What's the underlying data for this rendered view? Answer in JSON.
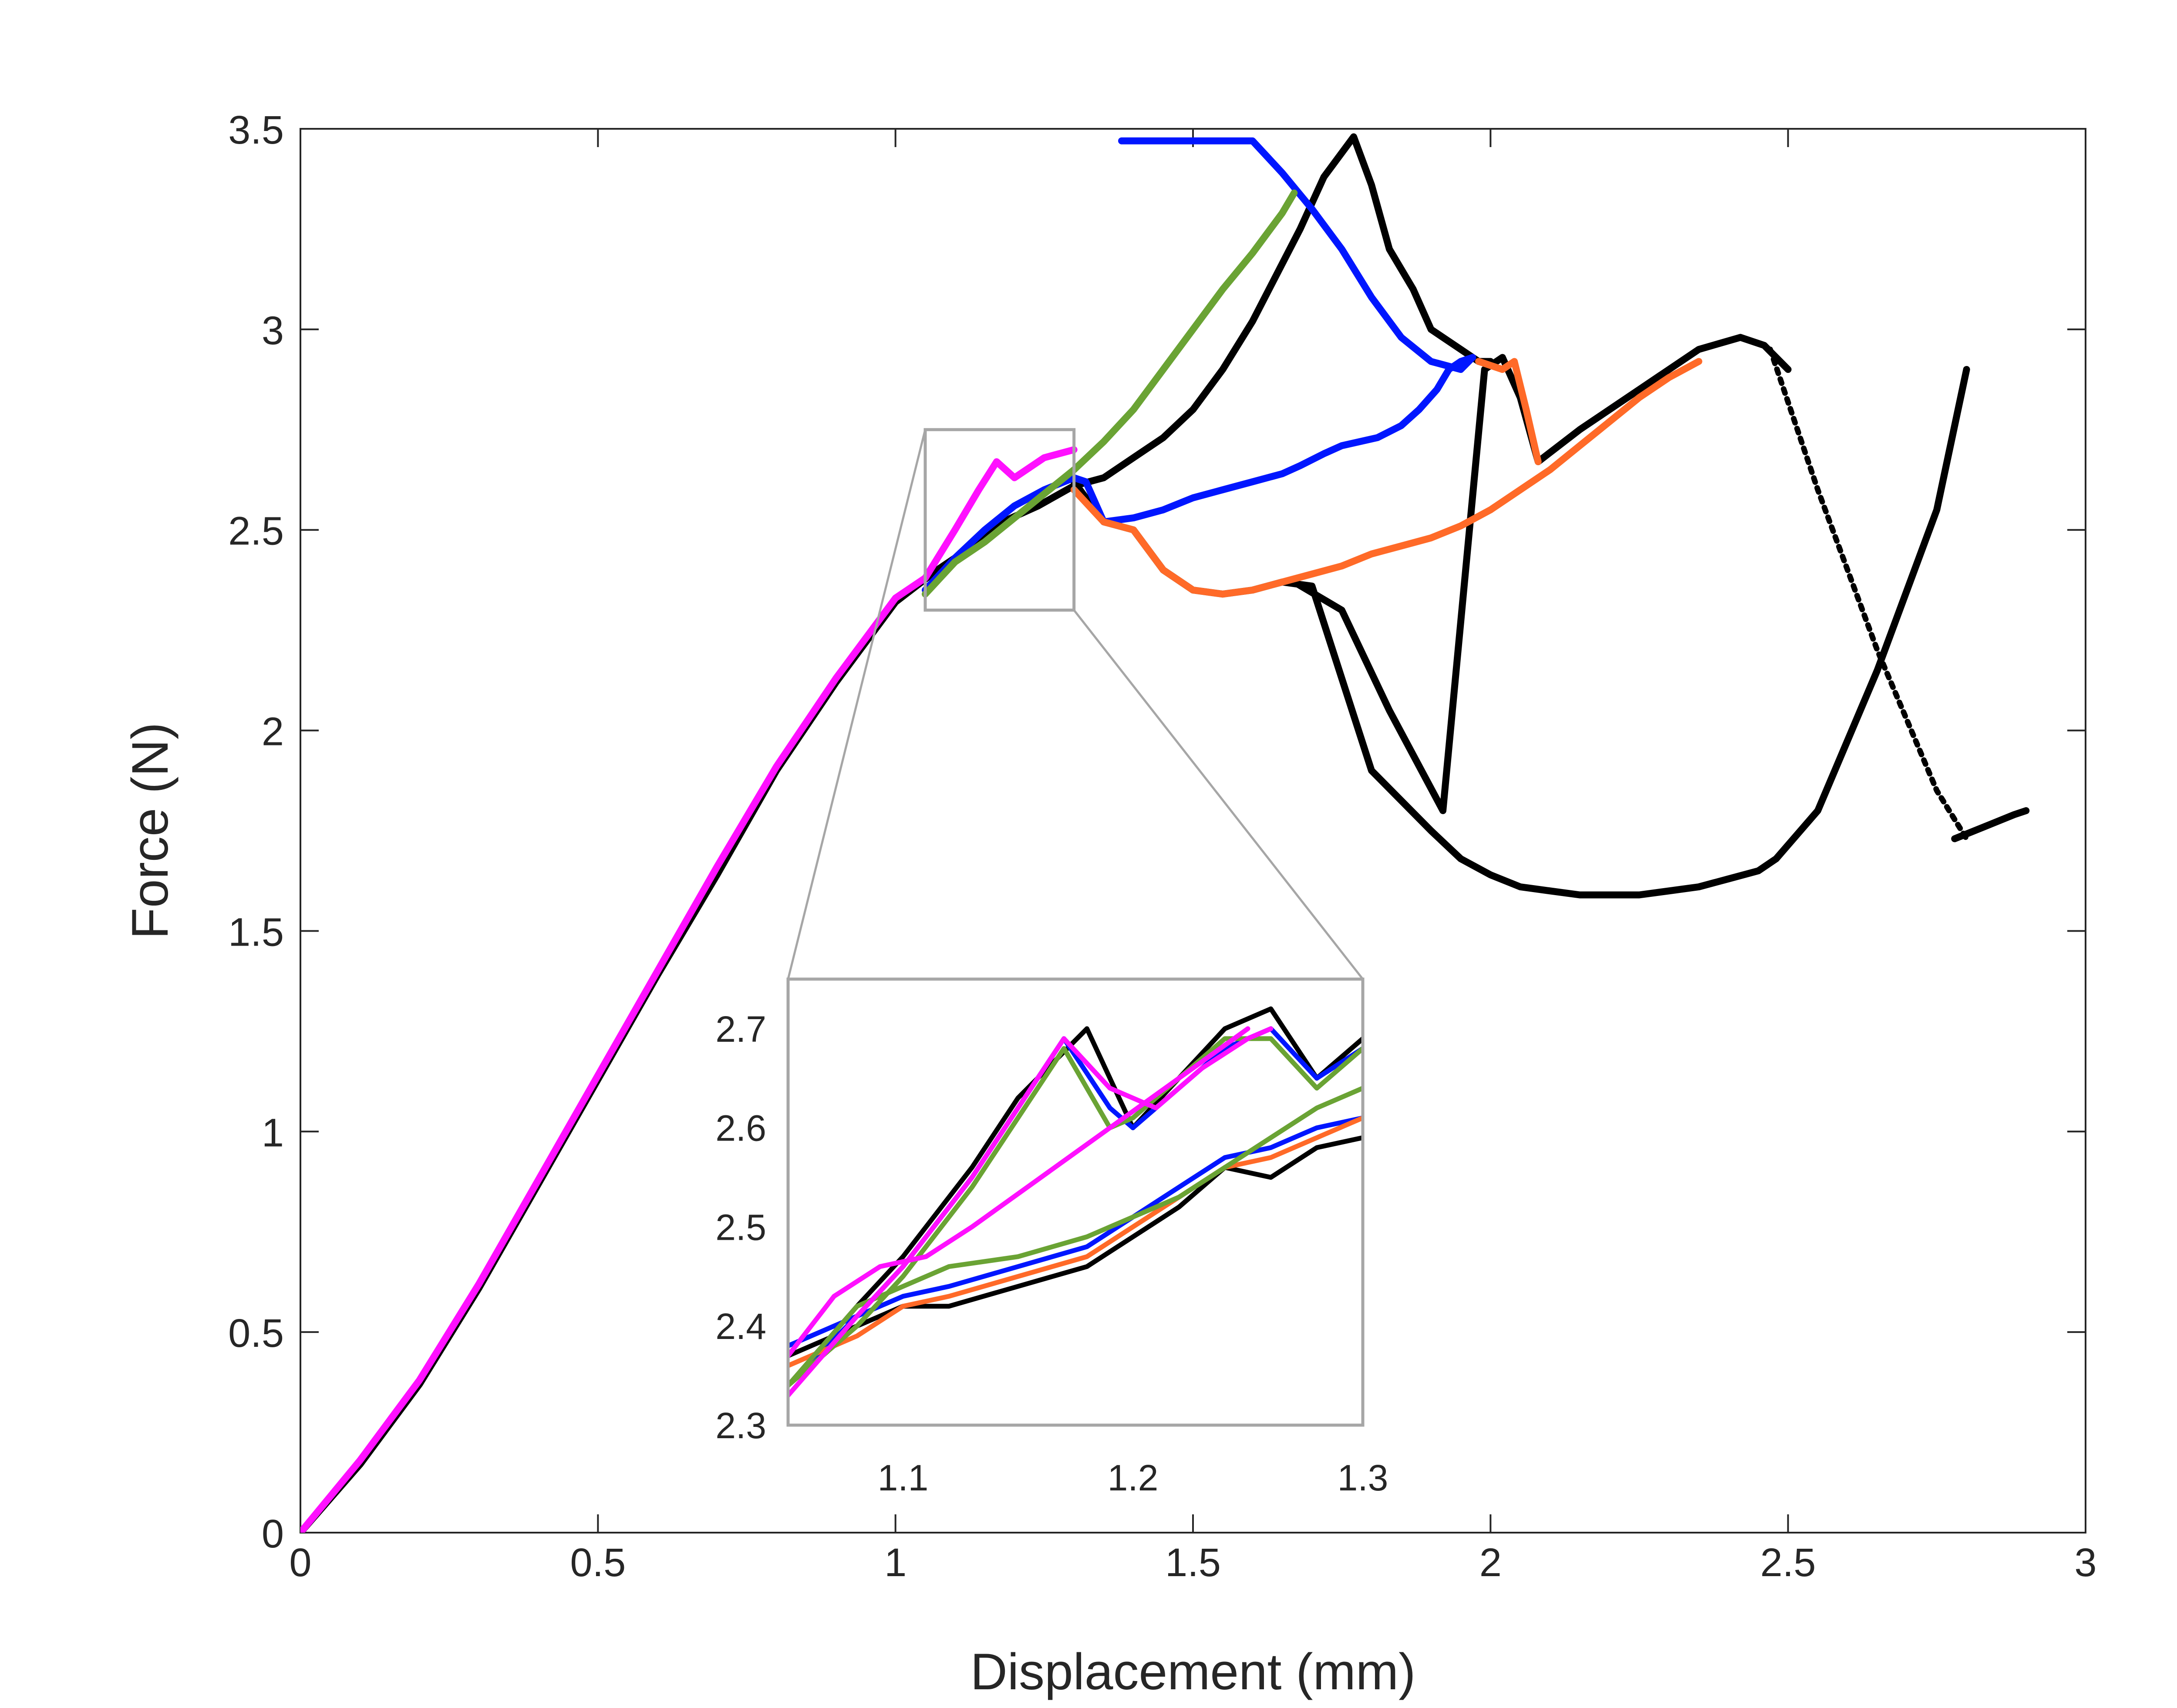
{
  "colors": {
    "black": "#000000",
    "blue": "#0016ff",
    "green": "#6aa334",
    "orange": "#ff6a28",
    "magenta": "#ff10ff",
    "gray_box": "#a6a6a6",
    "axis": "#262626"
  },
  "chart_data": [
    {
      "id": "main",
      "type": "line",
      "title": "",
      "xlabel": "Displacement (mm)",
      "ylabel": "Force (N)",
      "xlim": [
        0,
        3
      ],
      "ylim": [
        0,
        3.5
      ],
      "xticks": [
        0,
        0.5,
        1,
        1.5,
        2,
        2.5,
        3
      ],
      "xtick_labels": [
        "0",
        "0.5",
        "1",
        "1.5",
        "2",
        "2.5",
        "3"
      ],
      "yticks": [
        0,
        0.5,
        1,
        1.5,
        2,
        2.5,
        3,
        3.5
      ],
      "ytick_labels": [
        "0",
        "0.5",
        "1",
        "1.5",
        "2",
        "2.5",
        "3",
        "3.5"
      ],
      "grid": false,
      "zoom_box": {
        "x": [
          1.05,
          1.3
        ],
        "y": [
          2.3,
          2.75
        ]
      },
      "series": [
        {
          "name": "black-1",
          "color": "black",
          "dashed": false,
          "x": [
            0,
            0.1,
            0.2,
            0.3,
            0.4,
            0.5,
            0.6,
            0.7,
            0.8,
            0.9,
            1.0,
            1.07,
            1.12,
            1.18,
            1.24,
            1.3,
            1.35,
            1.4,
            1.45,
            1.5,
            1.55,
            1.6,
            1.68,
            1.72,
            1.77,
            1.8,
            1.83,
            1.87,
            1.9,
            1.95,
            1.98,
            2.0
          ],
          "y": [
            0,
            0.17,
            0.37,
            0.61,
            0.87,
            1.13,
            1.39,
            1.64,
            1.9,
            2.12,
            2.32,
            2.4,
            2.45,
            2.52,
            2.56,
            2.61,
            2.63,
            2.68,
            2.73,
            2.8,
            2.9,
            3.02,
            3.25,
            3.38,
            3.48,
            3.36,
            3.2,
            3.1,
            3.0,
            2.95,
            2.92,
            2.92
          ]
        },
        {
          "name": "black-2",
          "color": "black",
          "dashed": false,
          "x": [
            1.3,
            1.35,
            1.4,
            1.45,
            1.5,
            1.55,
            1.6,
            1.65,
            1.7,
            1.8,
            1.9,
            1.95,
            2.0,
            2.05,
            2.1,
            2.15,
            2.2,
            2.25,
            2.3,
            2.35,
            2.4,
            2.45,
            2.48,
            2.55,
            2.65,
            2.75,
            2.8
          ],
          "y": [
            2.62,
            2.52,
            2.5,
            2.4,
            2.35,
            2.34,
            2.35,
            2.37,
            2.36,
            1.9,
            1.75,
            1.68,
            1.64,
            1.61,
            1.6,
            1.59,
            1.59,
            1.59,
            1.6,
            1.61,
            1.63,
            1.65,
            1.68,
            1.8,
            2.15,
            2.55,
            2.9
          ]
        },
        {
          "name": "black-3",
          "color": "black",
          "dashed": false,
          "x": [
            1.67,
            1.75,
            1.83,
            1.92,
            1.99,
            2.02,
            2.05,
            2.08,
            2.15,
            2.25,
            2.35,
            2.42,
            2.46,
            2.5
          ],
          "y": [
            2.37,
            2.3,
            2.05,
            1.8,
            2.9,
            2.93,
            2.83,
            2.67,
            2.75,
            2.85,
            2.95,
            2.98,
            2.96,
            2.9
          ]
        },
        {
          "name": "black-dotted",
          "color": "black",
          "dashed": true,
          "x": [
            2.47,
            2.55,
            2.65,
            2.75,
            2.8
          ],
          "y": [
            2.95,
            2.6,
            2.2,
            1.85,
            1.73
          ]
        },
        {
          "name": "black-tail",
          "color": "black",
          "dashed": false,
          "x": [
            2.78,
            2.83,
            2.88,
            2.9
          ],
          "y": [
            1.73,
            1.76,
            1.79,
            1.8
          ]
        },
        {
          "name": "blue",
          "color": "blue",
          "dashed": false,
          "x": [
            1.05,
            1.1,
            1.15,
            1.2,
            1.25,
            1.3,
            1.32,
            1.35,
            1.4,
            1.45,
            1.5,
            1.55,
            1.6,
            1.65,
            1.68,
            1.72,
            1.75,
            1.78,
            1.81,
            1.85,
            1.88,
            1.91,
            1.93,
            1.95,
            1.97,
            1.95,
            1.9,
            1.85,
            1.8,
            1.75,
            1.7,
            1.65,
            1.6,
            1.55,
            1.5,
            1.45,
            1.4,
            1.38
          ],
          "y": [
            2.35,
            2.43,
            2.5,
            2.56,
            2.6,
            2.63,
            2.62,
            2.52,
            2.53,
            2.55,
            2.58,
            2.6,
            2.62,
            2.64,
            2.66,
            2.69,
            2.71,
            2.72,
            2.73,
            2.76,
            2.8,
            2.85,
            2.9,
            2.92,
            2.93,
            2.9,
            2.92,
            2.98,
            3.08,
            3.2,
            3.3,
            3.39,
            3.47,
            3.47,
            3.47,
            3.47,
            3.47,
            3.47
          ]
        },
        {
          "name": "orange",
          "color": "orange",
          "dashed": false,
          "x": [
            1.3,
            1.35,
            1.4,
            1.45,
            1.5,
            1.55,
            1.6,
            1.65,
            1.7,
            1.75,
            1.8,
            1.85,
            1.9,
            1.95,
            2.0,
            2.05,
            2.1,
            2.15,
            2.2,
            2.25,
            2.3,
            2.35
          ],
          "y": [
            2.6,
            2.52,
            2.5,
            2.4,
            2.35,
            2.34,
            2.35,
            2.37,
            2.39,
            2.41,
            2.44,
            2.46,
            2.48,
            2.51,
            2.55,
            2.6,
            2.65,
            2.71,
            2.77,
            2.83,
            2.88,
            2.92
          ]
        },
        {
          "name": "orange-2",
          "color": "orange",
          "dashed": false,
          "x": [
            1.98,
            2.02,
            2.04,
            2.06,
            2.08
          ],
          "y": [
            2.92,
            2.9,
            2.92,
            2.8,
            2.67
          ]
        },
        {
          "name": "green",
          "color": "green",
          "dashed": false,
          "x": [
            1.05,
            1.1,
            1.15,
            1.2,
            1.25,
            1.3,
            1.35,
            1.4,
            1.45,
            1.5,
            1.55,
            1.6,
            1.65,
            1.67
          ],
          "y": [
            2.34,
            2.42,
            2.47,
            2.53,
            2.59,
            2.65,
            2.72,
            2.8,
            2.9,
            3.0,
            3.1,
            3.19,
            3.29,
            3.34
          ]
        },
        {
          "name": "magenta",
          "color": "magenta",
          "dashed": false,
          "x": [
            0,
            0.1,
            0.2,
            0.3,
            0.4,
            0.5,
            0.6,
            0.7,
            0.8,
            0.9,
            1.0,
            1.05,
            1.1,
            1.14,
            1.17,
            1.2,
            1.25,
            1.3
          ],
          "y": [
            0,
            0.18,
            0.38,
            0.62,
            0.88,
            1.14,
            1.4,
            1.66,
            1.91,
            2.13,
            2.33,
            2.38,
            2.5,
            2.6,
            2.67,
            2.63,
            2.68,
            2.7
          ]
        }
      ]
    },
    {
      "id": "inset",
      "type": "line",
      "title": "",
      "xlabel": "",
      "ylabel": "",
      "xlim": [
        1.05,
        1.3
      ],
      "ylim": [
        2.3,
        2.75
      ],
      "xticks": [
        1.1,
        1.2,
        1.3
      ],
      "xtick_labels": [
        "1.1",
        "1.2",
        "1.3"
      ],
      "yticks": [
        2.3,
        2.4,
        2.5,
        2.6,
        2.7
      ],
      "ytick_labels": [
        "2.3",
        "2.4",
        "2.5",
        "2.6",
        "2.7"
      ],
      "grid": false,
      "series": [
        {
          "name": "black-steep",
          "color": "black",
          "x": [
            1.05,
            1.08,
            1.1,
            1.13,
            1.15,
            1.18,
            1.2,
            1.22,
            1.24,
            1.26,
            1.28,
            1.3
          ],
          "y": [
            2.34,
            2.42,
            2.47,
            2.56,
            2.63,
            2.7,
            2.6,
            2.65,
            2.7,
            2.72,
            2.65,
            2.69
          ]
        },
        {
          "name": "black-low",
          "color": "black",
          "x": [
            1.05,
            1.08,
            1.1,
            1.12,
            1.15,
            1.18,
            1.2,
            1.22,
            1.24,
            1.26,
            1.28,
            1.3
          ],
          "y": [
            2.37,
            2.4,
            2.42,
            2.42,
            2.44,
            2.46,
            2.49,
            2.52,
            2.56,
            2.55,
            2.58,
            2.59
          ]
        },
        {
          "name": "blue-steep",
          "color": "blue",
          "x": [
            1.05,
            1.08,
            1.1,
            1.13,
            1.15,
            1.17,
            1.19,
            1.2,
            1.22,
            1.24,
            1.26,
            1.28,
            1.3
          ],
          "y": [
            2.34,
            2.41,
            2.46,
            2.55,
            2.62,
            2.69,
            2.62,
            2.6,
            2.64,
            2.68,
            2.7,
            2.65,
            2.68
          ]
        },
        {
          "name": "blue-low",
          "color": "blue",
          "x": [
            1.05,
            1.08,
            1.1,
            1.12,
            1.15,
            1.18,
            1.2,
            1.22,
            1.24,
            1.26,
            1.28,
            1.3
          ],
          "y": [
            2.38,
            2.41,
            2.43,
            2.44,
            2.46,
            2.48,
            2.51,
            2.54,
            2.57,
            2.58,
            2.6,
            2.61
          ]
        },
        {
          "name": "orange-low",
          "color": "orange",
          "x": [
            1.05,
            1.08,
            1.1,
            1.12,
            1.15,
            1.18,
            1.2,
            1.22,
            1.24,
            1.26,
            1.28,
            1.3
          ],
          "y": [
            2.36,
            2.39,
            2.42,
            2.43,
            2.45,
            2.47,
            2.5,
            2.53,
            2.56,
            2.57,
            2.59,
            2.61
          ]
        },
        {
          "name": "green-steep",
          "color": "green",
          "x": [
            1.05,
            1.08,
            1.1,
            1.13,
            1.15,
            1.17,
            1.19,
            1.2,
            1.22,
            1.24,
            1.26,
            1.28,
            1.3
          ],
          "y": [
            2.34,
            2.4,
            2.45,
            2.54,
            2.61,
            2.68,
            2.6,
            2.61,
            2.65,
            2.69,
            2.69,
            2.64,
            2.68
          ]
        },
        {
          "name": "green-low",
          "color": "green",
          "x": [
            1.05,
            1.08,
            1.1,
            1.12,
            1.15,
            1.18,
            1.2,
            1.22,
            1.24,
            1.26,
            1.28,
            1.3
          ],
          "y": [
            2.34,
            2.42,
            2.44,
            2.46,
            2.47,
            2.49,
            2.51,
            2.53,
            2.56,
            2.59,
            2.62,
            2.64
          ]
        },
        {
          "name": "magenta-steep",
          "color": "magenta",
          "x": [
            1.05,
            1.08,
            1.1,
            1.13,
            1.15,
            1.17,
            1.19,
            1.21,
            1.23,
            1.25,
            1.26
          ],
          "y": [
            2.33,
            2.41,
            2.46,
            2.55,
            2.62,
            2.69,
            2.64,
            2.62,
            2.66,
            2.69,
            2.7
          ]
        },
        {
          "name": "magenta-cross",
          "color": "magenta",
          "x": [
            1.05,
            1.07,
            1.09,
            1.11,
            1.13,
            1.16,
            1.19,
            1.22,
            1.25
          ],
          "y": [
            2.37,
            2.43,
            2.46,
            2.47,
            2.5,
            2.55,
            2.6,
            2.65,
            2.7
          ]
        }
      ]
    }
  ]
}
